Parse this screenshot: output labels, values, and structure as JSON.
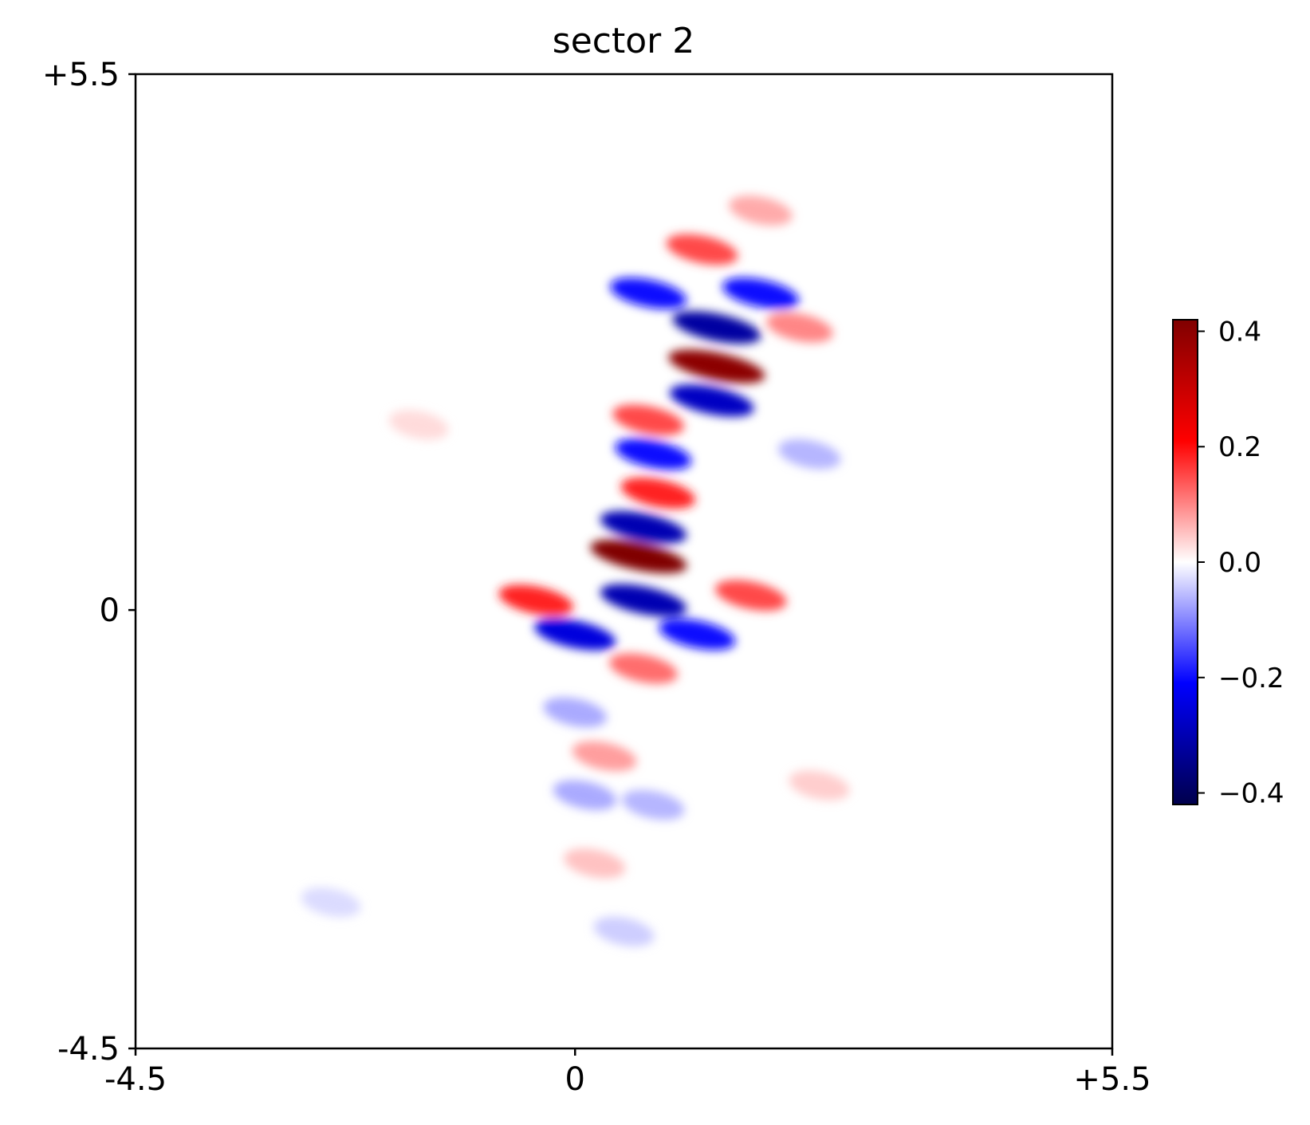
{
  "chart_data": {
    "type": "heatmap",
    "title": "sector 2",
    "xlabel": "",
    "ylabel": "",
    "x_ticks": [
      {
        "value": -4.5,
        "label": "-4.5"
      },
      {
        "value": 0,
        "label": "0"
      },
      {
        "value": 5.5,
        "label": "+5.5"
      }
    ],
    "y_ticks": [
      {
        "value": 5.5,
        "label": "+5.5"
      },
      {
        "value": 0,
        "label": "0"
      },
      {
        "value": -4.5,
        "label": "-4.5"
      }
    ],
    "xlim": [
      -4.5,
      5.5
    ],
    "ylim": [
      -4.5,
      5.5
    ],
    "colormap": "seismic",
    "colorbar": {
      "vmin": -0.42,
      "vmax": 0.42,
      "ticks": [
        {
          "value": 0.4,
          "label": "0.4"
        },
        {
          "value": 0.2,
          "label": "0.2"
        },
        {
          "value": 0.0,
          "label": "0.0"
        },
        {
          "value": -0.2,
          "label": "−0.2"
        },
        {
          "value": -0.4,
          "label": "−0.4"
        }
      ],
      "placement": "right"
    },
    "grid": false,
    "features": [
      {
        "x": 0.65,
        "y": 0.55,
        "value": 0.42
      },
      {
        "x": 0.7,
        "y": 0.85,
        "value": -0.3
      },
      {
        "x": 0.7,
        "y": 0.1,
        "value": -0.3
      },
      {
        "x": 1.45,
        "y": 2.5,
        "value": 0.4
      },
      {
        "x": 1.45,
        "y": 2.9,
        "value": -0.32
      },
      {
        "x": 1.4,
        "y": 2.15,
        "value": -0.28
      },
      {
        "x": 0.8,
        "y": 1.6,
        "value": -0.2
      },
      {
        "x": 0.85,
        "y": 1.2,
        "value": 0.18
      },
      {
        "x": 0.75,
        "y": 1.95,
        "value": 0.15
      },
      {
        "x": 0.0,
        "y": -0.25,
        "value": -0.25
      },
      {
        "x": 1.25,
        "y": -0.25,
        "value": -0.2
      },
      {
        "x": -0.4,
        "y": 0.1,
        "value": 0.18
      },
      {
        "x": 1.8,
        "y": 0.15,
        "value": 0.15
      },
      {
        "x": 0.75,
        "y": 3.25,
        "value": -0.2
      },
      {
        "x": 1.9,
        "y": 3.25,
        "value": -0.2
      },
      {
        "x": 1.3,
        "y": 3.7,
        "value": 0.15
      },
      {
        "x": 0.7,
        "y": -0.6,
        "value": 0.12
      },
      {
        "x": 0.3,
        "y": -1.5,
        "value": 0.08
      },
      {
        "x": 0.0,
        "y": -1.05,
        "value": -0.07
      },
      {
        "x": 0.1,
        "y": -1.9,
        "value": -0.07
      },
      {
        "x": 0.2,
        "y": -2.6,
        "value": 0.05
      },
      {
        "x": 0.5,
        "y": -3.3,
        "value": -0.04
      },
      {
        "x": 0.8,
        "y": -2.0,
        "value": -0.06
      },
      {
        "x": 2.3,
        "y": 2.9,
        "value": 0.1
      },
      {
        "x": 1.9,
        "y": 4.1,
        "value": 0.07
      },
      {
        "x": 2.4,
        "y": 1.6,
        "value": -0.06
      },
      {
        "x": 2.5,
        "y": -1.8,
        "value": 0.04
      },
      {
        "x": -1.6,
        "y": 1.9,
        "value": 0.03
      },
      {
        "x": -2.5,
        "y": -3.0,
        "value": -0.03
      }
    ]
  }
}
